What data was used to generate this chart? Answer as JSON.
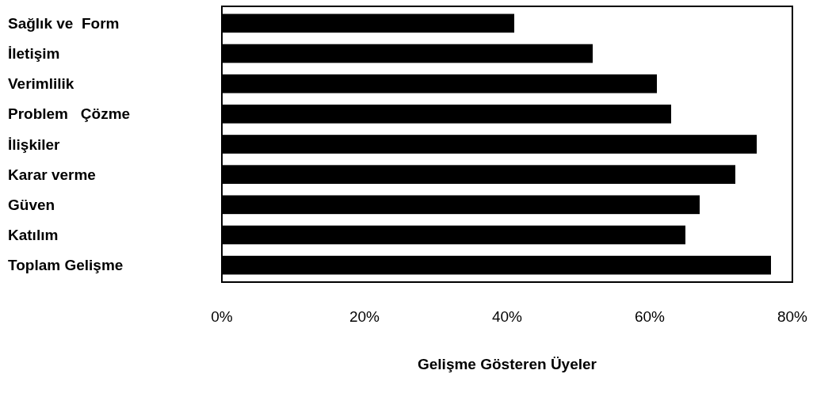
{
  "chart_data": {
    "type": "bar",
    "orientation": "horizontal",
    "xlabel": "Gelişme Gösteren Üyeler",
    "categories": [
      "Sağlık ve  Form",
      "İletişim",
      "Verimlilik",
      "Problem   Çözme",
      "İlişkiler",
      "Karar verme",
      "Güven",
      "Katılım",
      "Toplam Gelişme"
    ],
    "values": [
      41,
      52,
      61,
      63,
      75,
      72,
      67,
      65,
      77
    ],
    "color": "#000000",
    "xlim": [
      0,
      80
    ],
    "xticks": [
      {
        "value": 0,
        "label": "0%"
      },
      {
        "value": 20,
        "label": "20%"
      },
      {
        "value": 40,
        "label": "40%"
      },
      {
        "value": 60,
        "label": "60%"
      },
      {
        "value": 80,
        "label": "80%"
      }
    ],
    "grid": false
  }
}
